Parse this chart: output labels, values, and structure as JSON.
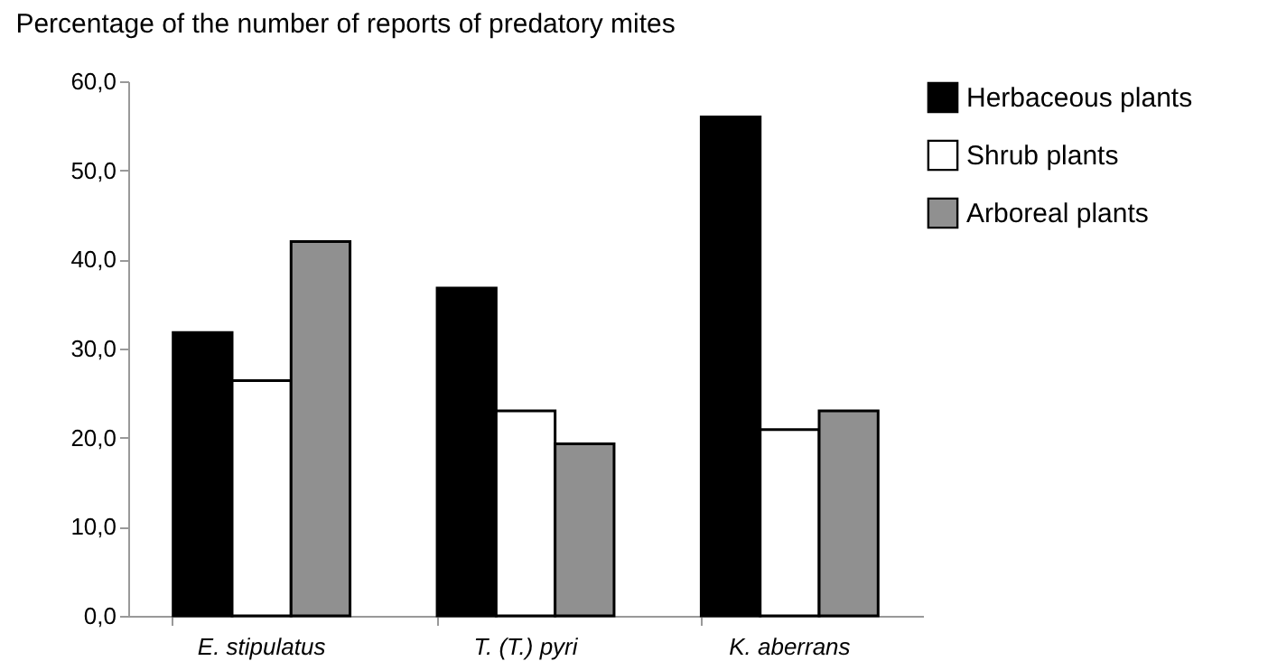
{
  "chart_data": {
    "type": "bar",
    "title": "Percentage of the number of reports of predatory mites",
    "categories": [
      "E. stipulatus",
      "T. (T.) pyri",
      "K. aberrans"
    ],
    "series": [
      {
        "name": "Herbaceous plants",
        "color": "#000000",
        "values": [
          31.8,
          36.8,
          56.0
        ]
      },
      {
        "name": "Shrub plants",
        "color": "#ffffff",
        "values": [
          26.4,
          23.0,
          20.9
        ]
      },
      {
        "name": "Arboreal plants",
        "color": "#909090",
        "values": [
          42.0,
          19.3,
          23.0
        ]
      }
    ],
    "ylim": [
      0,
      60
    ],
    "yticks": [
      {
        "value": 0,
        "label": "0,0"
      },
      {
        "value": 10,
        "label": "10,0"
      },
      {
        "value": 20,
        "label": "20,0"
      },
      {
        "value": 30,
        "label": "30,0"
      },
      {
        "value": 40,
        "label": "40,0"
      },
      {
        "value": 50,
        "label": "50,0"
      },
      {
        "value": 60,
        "label": "60,0"
      }
    ],
    "grid": false,
    "legend": "top right"
  }
}
